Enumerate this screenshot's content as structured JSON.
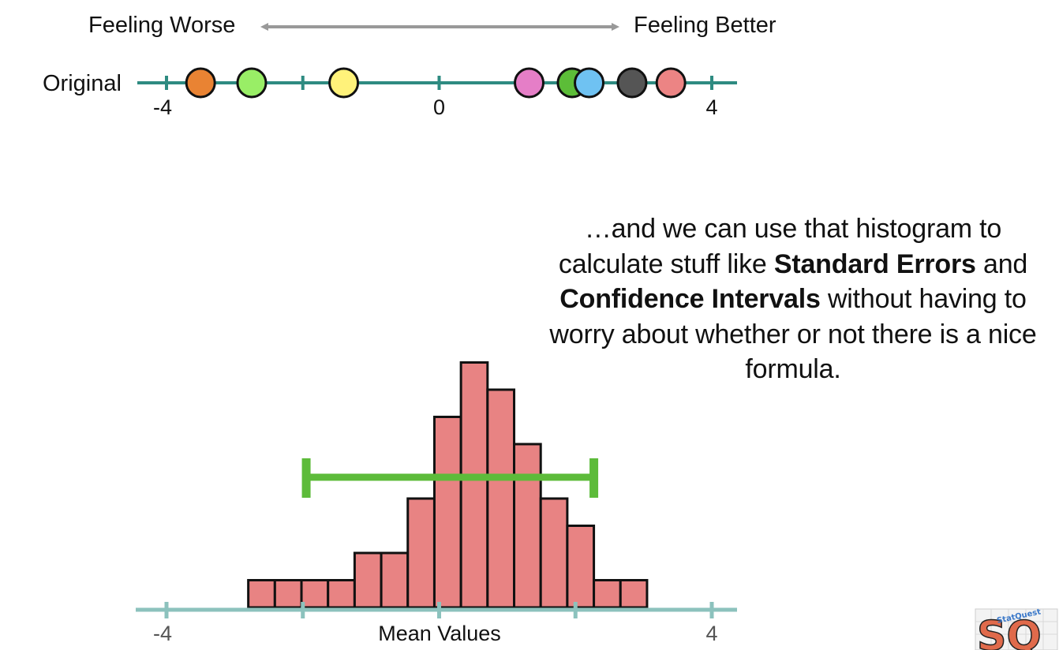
{
  "direction": {
    "left_label": "Feeling Worse",
    "right_label": "Feeling Better"
  },
  "caption": {
    "part1": "…and we can use that histogram to calculate stuff like ",
    "bold1": "Standard Errors",
    "part2": " and ",
    "bold2": "Confidence Intervals",
    "part3": " without having to worry about whether or not there is a nice formula."
  },
  "logo": {
    "text": "SQ",
    "small_text": "StatQuest"
  },
  "colors": {
    "axis_top": "#2e8b81",
    "axis_bottom": "#8cc2bd",
    "arrow": "#999999",
    "bar_fill": "#e88383",
    "ci": "#5dbb3a"
  },
  "chart_data": [
    {
      "type": "scatter",
      "row_label": "Original",
      "xlim": [
        -4.2,
        4.4
      ],
      "ticks": [
        -4,
        -2,
        0,
        2,
        4
      ],
      "tick_labels": [
        {
          "value": -4,
          "label": "-4"
        },
        {
          "value": 0,
          "label": "0"
        },
        {
          "value": 4,
          "label": "4"
        }
      ],
      "points": [
        {
          "x": -3.5,
          "color": "#e98333"
        },
        {
          "x": -2.75,
          "color": "#99ee66"
        },
        {
          "x": -1.4,
          "color": "#fff27a"
        },
        {
          "x": 1.32,
          "color": "#e57ec7"
        },
        {
          "x": 1.95,
          "color": "#5cbd38"
        },
        {
          "x": 2.2,
          "color": "#6fc2f2"
        },
        {
          "x": 2.83,
          "color": "#555555"
        },
        {
          "x": 3.4,
          "color": "#ec8484"
        }
      ]
    },
    {
      "type": "bar",
      "xlabel": "Mean Values",
      "xlim": [
        -4.2,
        4.4
      ],
      "ticks": [
        -4,
        -2,
        0,
        2,
        4
      ],
      "tick_labels": [
        {
          "value": -4,
          "label": "-4"
        },
        {
          "value": 4,
          "label": "4"
        }
      ],
      "bin_start": -2.8,
      "bin_width": 0.39,
      "counts": [
        1,
        1,
        1,
        1,
        2,
        2,
        4,
        7,
        9,
        8,
        6,
        4,
        3,
        1,
        1
      ],
      "confidence_interval": [
        -1.95,
        2.27
      ]
    }
  ]
}
